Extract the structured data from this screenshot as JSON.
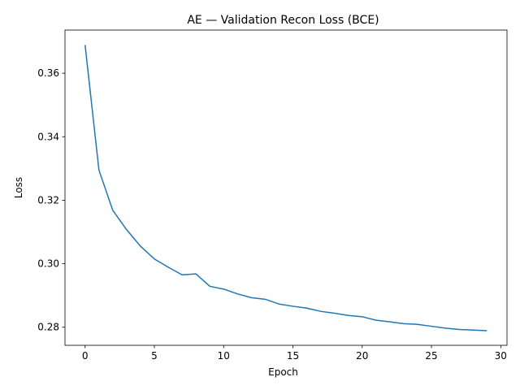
{
  "chart_data": {
    "type": "line",
    "title": "AE — Validation Recon Loss (BCE)",
    "xlabel": "Epoch",
    "ylabel": "Loss",
    "xlim": [
      -1.45,
      30.45
    ],
    "ylim": [
      0.2743,
      0.3736
    ],
    "x_ticks": [
      0,
      5,
      10,
      15,
      20,
      25,
      30
    ],
    "y_ticks": [
      0.28,
      0.3,
      0.32,
      0.34,
      0.36
    ],
    "x_tick_labels": [
      "0",
      "5",
      "10",
      "15",
      "20",
      "25",
      "30"
    ],
    "y_tick_labels": [
      "0.28",
      "0.30",
      "0.32",
      "0.34",
      "0.36"
    ],
    "grid": false,
    "colors": {
      "line": "#1f77b4",
      "axes": "#000000"
    },
    "series": [
      {
        "x": [
          0,
          1,
          2,
          3,
          4,
          5,
          6,
          7,
          8,
          9,
          10,
          11,
          12,
          13,
          14,
          15,
          16,
          17,
          18,
          19,
          20,
          21,
          22,
          23,
          24,
          25,
          26,
          27,
          28,
          29
        ],
        "values": [
          0.3689,
          0.3295,
          0.3168,
          0.3107,
          0.3055,
          0.3015,
          0.2989,
          0.2965,
          0.2968,
          0.2929,
          0.292,
          0.2905,
          0.2893,
          0.2888,
          0.2873,
          0.2866,
          0.286,
          0.285,
          0.2844,
          0.2837,
          0.2833,
          0.2822,
          0.2817,
          0.2811,
          0.2809,
          0.2803,
          0.2797,
          0.2793,
          0.2791,
          0.2789
        ]
      }
    ]
  }
}
